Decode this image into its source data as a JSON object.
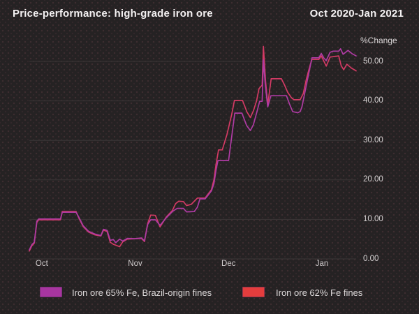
{
  "header": {
    "title": "Price-performance: high-grade iron ore",
    "date_range": "Oct 2020-Jan 2021"
  },
  "chart_data": {
    "type": "line",
    "title": "Price-performance: high-grade iron ore",
    "subtitle": "Oct 2020-Jan 2021",
    "grid": true,
    "legend_position": "bottom",
    "y_axis": {
      "label": "%Change",
      "min": 0,
      "max": 55,
      "tick_values": [
        0,
        10,
        20,
        30,
        40,
        50
      ],
      "tick_labels": [
        "0.00",
        "10.00",
        "20.00",
        "30.00",
        "40.00",
        "50.00"
      ]
    },
    "x_axis": {
      "unit": "days from Oct 1 2020",
      "min": 0,
      "max": 105,
      "tick_days": [
        4,
        34,
        64,
        94
      ],
      "tick_labels": [
        "Oct",
        "Nov",
        "Dec",
        "Jan"
      ]
    },
    "series": [
      {
        "name": "Iron ore 62% Fe fines",
        "line_color": "#d23a64",
        "points": [
          [
            0,
            2.0
          ],
          [
            0.8,
            3.3
          ],
          [
            1.6,
            4.0
          ],
          [
            2.4,
            9.2
          ],
          [
            3,
            9.9
          ],
          [
            10,
            9.9
          ],
          [
            10.6,
            12.0
          ],
          [
            15,
            12.0
          ],
          [
            16,
            10.2
          ],
          [
            17.3,
            8.2
          ],
          [
            19,
            6.8
          ],
          [
            21,
            6.1
          ],
          [
            23,
            5.8
          ],
          [
            23.8,
            7.3
          ],
          [
            25,
            6.9
          ],
          [
            26,
            4.2
          ],
          [
            27,
            3.7
          ],
          [
            28,
            3.4
          ],
          [
            29,
            3.1
          ],
          [
            30,
            4.3
          ],
          [
            31.5,
            5.0
          ],
          [
            34,
            5.1
          ],
          [
            36,
            5.2
          ],
          [
            37,
            4.4
          ],
          [
            38,
            8.9
          ],
          [
            39,
            11.1
          ],
          [
            40.5,
            11.0
          ],
          [
            42,
            8.1
          ],
          [
            44,
            10.6
          ],
          [
            46,
            12.3
          ],
          [
            47,
            14.0
          ],
          [
            48,
            14.6
          ],
          [
            49.5,
            14.5
          ],
          [
            50.5,
            13.5
          ],
          [
            52,
            13.8
          ],
          [
            53,
            14.6
          ],
          [
            54,
            15.4
          ],
          [
            56.5,
            15.4
          ],
          [
            57.5,
            16.5
          ],
          [
            58.5,
            17.5
          ],
          [
            59.3,
            20.0
          ],
          [
            60,
            24.0
          ],
          [
            60.8,
            27.6
          ],
          [
            62,
            27.6
          ],
          [
            63.5,
            31.5
          ],
          [
            65,
            36.5
          ],
          [
            65.9,
            40.1
          ],
          [
            68.5,
            40.1
          ],
          [
            69.9,
            37.2
          ],
          [
            71,
            35.8
          ],
          [
            72,
            37.5
          ],
          [
            73,
            40.0
          ],
          [
            73.8,
            43.1
          ],
          [
            74.8,
            44.0
          ],
          [
            75.2,
            53.8
          ],
          [
            75.9,
            45.0
          ],
          [
            76.6,
            39.0
          ],
          [
            77.7,
            45.6
          ],
          [
            81,
            45.6
          ],
          [
            82,
            44.0
          ],
          [
            83,
            42.2
          ],
          [
            84.2,
            40.8
          ],
          [
            85,
            40.3
          ],
          [
            87,
            40.3
          ],
          [
            88,
            41.8
          ],
          [
            89,
            45.5
          ],
          [
            90.2,
            49.0
          ],
          [
            90.8,
            50.5
          ],
          [
            93,
            50.5
          ],
          [
            93.8,
            51.4
          ],
          [
            95.4,
            48.8
          ],
          [
            96.6,
            51.1
          ],
          [
            99.4,
            51.4
          ],
          [
            100.2,
            48.9
          ],
          [
            101,
            47.9
          ],
          [
            102,
            49.3
          ],
          [
            103.5,
            48.3
          ],
          [
            105,
            47.6
          ]
        ]
      },
      {
        "name": "Iron ore 65% Fe, Brazil-origin fines",
        "line_color": "#ae3ba3",
        "points": [
          [
            0,
            2.3
          ],
          [
            0.8,
            3.6
          ],
          [
            1.6,
            4.2
          ],
          [
            2.4,
            9.5
          ],
          [
            3,
            10.1
          ],
          [
            10,
            10.1
          ],
          [
            10.6,
            11.8
          ],
          [
            15,
            11.8
          ],
          [
            16,
            10.4
          ],
          [
            17.3,
            8.4
          ],
          [
            19,
            7.0
          ],
          [
            21,
            6.3
          ],
          [
            23,
            5.9
          ],
          [
            23.8,
            7.5
          ],
          [
            25,
            7.2
          ],
          [
            26,
            4.7
          ],
          [
            27,
            4.9
          ],
          [
            27.8,
            4.1
          ],
          [
            29,
            5.0
          ],
          [
            30,
            4.5
          ],
          [
            31.5,
            5.2
          ],
          [
            34,
            5.1
          ],
          [
            36,
            5.3
          ],
          [
            37,
            4.6
          ],
          [
            38,
            8.7
          ],
          [
            39,
            9.9
          ],
          [
            40.5,
            9.9
          ],
          [
            42,
            8.5
          ],
          [
            44,
            10.4
          ],
          [
            46,
            12.0
          ],
          [
            47.5,
            12.8
          ],
          [
            49.5,
            12.8
          ],
          [
            50.5,
            11.9
          ],
          [
            53,
            12.0
          ],
          [
            54,
            13.1
          ],
          [
            54.8,
            15.2
          ],
          [
            56.5,
            15.2
          ],
          [
            57.5,
            16.2
          ],
          [
            58.5,
            17.2
          ],
          [
            59.3,
            19.0
          ],
          [
            60,
            22.5
          ],
          [
            60.6,
            24.9
          ],
          [
            64,
            24.9
          ],
          [
            66,
            36.9
          ],
          [
            68.3,
            36.9
          ],
          [
            69.8,
            33.8
          ],
          [
            71,
            32.5
          ],
          [
            72,
            34.0
          ],
          [
            73.2,
            37.5
          ],
          [
            74,
            39.9
          ],
          [
            74.8,
            39.9
          ],
          [
            75.2,
            50.4
          ],
          [
            75.8,
            44.0
          ],
          [
            76.6,
            38.5
          ],
          [
            77.6,
            41.3
          ],
          [
            82.6,
            41.3
          ],
          [
            83.6,
            39.2
          ],
          [
            84.6,
            37.3
          ],
          [
            86.2,
            37.0
          ],
          [
            87,
            37.3
          ],
          [
            87.6,
            38.5
          ],
          [
            89,
            44.0
          ],
          [
            90.3,
            49.0
          ],
          [
            90.8,
            50.9
          ],
          [
            93,
            50.9
          ],
          [
            93.8,
            52.0
          ],
          [
            94.6,
            50.9
          ],
          [
            95.4,
            50.2
          ],
          [
            96.6,
            52.3
          ],
          [
            97.6,
            52.6
          ],
          [
            99.4,
            52.6
          ],
          [
            100,
            53.2
          ],
          [
            100.8,
            51.8
          ],
          [
            102.4,
            52.8
          ],
          [
            103.6,
            52.0
          ],
          [
            105,
            51.4
          ]
        ]
      }
    ]
  },
  "legend": {
    "items": [
      {
        "label": "Iron ore 65% Fe, Brazil-origin fines",
        "swatch_color": "#a835a0"
      },
      {
        "label": "Iron ore 62% Fe fines",
        "swatch_color": "#e43d3d"
      }
    ]
  },
  "colors": {
    "background": "#252223",
    "gridline": "#3b3637",
    "text_primary": "#f4f1f2",
    "text_secondary": "#d4d0d1",
    "series_65_line": "#ae3ba3",
    "series_62_line": "#d23a64"
  }
}
